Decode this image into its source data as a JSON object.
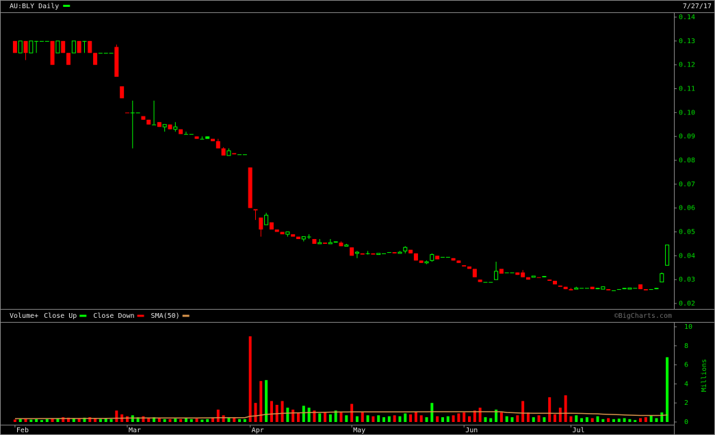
{
  "header": {
    "date": "7/27/17",
    "credit": "©BigCharts.com"
  },
  "chart_data": [
    {
      "type": "candlestick",
      "title": "AU:BLY Daily",
      "up_color": "#00ff00",
      "down_color": "#ff0000",
      "categories": [
        "Feb",
        null,
        null,
        null,
        null,
        null,
        null,
        null,
        null,
        null,
        null,
        null,
        null,
        null,
        null,
        null,
        null,
        null,
        null,
        null,
        null,
        "Mar",
        null,
        null,
        null,
        null,
        null,
        null,
        null,
        null,
        null,
        null,
        null,
        null,
        null,
        null,
        null,
        null,
        null,
        null,
        null,
        null,
        null,
        null,
        "Apr",
        null,
        null,
        null,
        null,
        null,
        null,
        null,
        null,
        null,
        null,
        null,
        null,
        null,
        null,
        null,
        null,
        null,
        null,
        "May",
        null,
        null,
        null,
        null,
        null,
        null,
        null,
        null,
        null,
        null,
        null,
        null,
        null,
        null,
        null,
        null,
        null,
        null,
        null,
        null,
        "Jun",
        null,
        null,
        null,
        null,
        null,
        null,
        null,
        null,
        null,
        null,
        null,
        null,
        null,
        null,
        null,
        null,
        null,
        null,
        null,
        "Jul",
        null,
        null,
        null,
        null,
        null,
        null,
        null,
        null,
        null,
        null,
        null,
        null,
        null,
        null,
        null,
        null,
        null,
        null
      ],
      "open": [
        0.13,
        0.125,
        0.13,
        0.125,
        0.13,
        0.13,
        0.13,
        0.13,
        0.125,
        0.13,
        0.125,
        0.125,
        0.13,
        0.13,
        0.13,
        0.125,
        0.125,
        0.125,
        0.125,
        0.1275,
        0.111,
        0.1,
        0.1,
        0.1,
        0.0985,
        0.097,
        0.095,
        0.096,
        0.094,
        0.095,
        0.093,
        0.093,
        0.091,
        0.091,
        0.09,
        0.089,
        0.09,
        0.089,
        0.088,
        0.085,
        0.082,
        0.083,
        0.0825,
        0.0825,
        0.077,
        0.0595,
        0.056,
        0.053,
        0.054,
        0.051,
        0.05,
        0.049,
        0.049,
        0.048,
        0.047,
        0.048,
        0.047,
        0.045,
        0.0455,
        0.045,
        0.046,
        0.0455,
        0.044,
        0.0435,
        0.041,
        0.041,
        0.041,
        0.041,
        0.0405,
        0.041,
        0.0415,
        0.0415,
        0.041,
        0.042,
        0.0425,
        0.041,
        0.038,
        0.037,
        0.038,
        0.04,
        0.0395,
        0.0395,
        0.039,
        0.038,
        0.036,
        0.0355,
        0.0345,
        0.03,
        0.029,
        0.029,
        0.03,
        0.0345,
        0.033,
        0.033,
        0.033,
        0.033,
        0.031,
        0.031,
        0.031,
        0.0315,
        0.03,
        0.0295,
        0.0275,
        0.027,
        0.026,
        0.026,
        0.0265,
        0.0265,
        0.027,
        0.0265,
        0.026,
        0.026,
        0.0255,
        0.026,
        0.0265,
        0.026,
        0.0265,
        0.028,
        0.026,
        0.026,
        0.0265,
        0.029,
        0.036
      ],
      "high": [
        0.13,
        0.13,
        0.13,
        0.13,
        0.13,
        0.13,
        0.13,
        0.13,
        0.13,
        0.13,
        0.125,
        0.13,
        0.13,
        0.13,
        0.13,
        0.125,
        0.125,
        0.125,
        0.125,
        0.1285,
        0.111,
        0.1,
        0.105,
        0.1,
        0.0985,
        0.097,
        0.105,
        0.096,
        0.095,
        0.095,
        0.096,
        0.093,
        0.092,
        0.091,
        0.09,
        0.09,
        0.09,
        0.089,
        0.089,
        0.0855,
        0.085,
        0.083,
        0.0825,
        0.0825,
        0.077,
        0.0595,
        0.056,
        0.058,
        0.054,
        0.051,
        0.05,
        0.05,
        0.049,
        0.048,
        0.048,
        0.049,
        0.047,
        0.047,
        0.0455,
        0.047,
        0.046,
        0.046,
        0.045,
        0.0435,
        0.042,
        0.041,
        0.042,
        0.041,
        0.041,
        0.041,
        0.0415,
        0.0415,
        0.042,
        0.044,
        0.0425,
        0.041,
        0.038,
        0.038,
        0.041,
        0.04,
        0.0395,
        0.0395,
        0.039,
        0.038,
        0.036,
        0.0355,
        0.0345,
        0.03,
        0.029,
        0.029,
        0.0375,
        0.0345,
        0.033,
        0.033,
        0.033,
        0.034,
        0.031,
        0.0315,
        0.031,
        0.0315,
        0.03,
        0.0295,
        0.0275,
        0.027,
        0.0265,
        0.027,
        0.0265,
        0.0265,
        0.027,
        0.0265,
        0.027,
        0.026,
        0.0255,
        0.026,
        0.0265,
        0.0265,
        0.0265,
        0.028,
        0.026,
        0.026,
        0.0265,
        0.033,
        0.0445
      ],
      "low": [
        0.125,
        0.125,
        0.122,
        0.125,
        0.125,
        0.13,
        0.13,
        0.12,
        0.125,
        0.125,
        0.12,
        0.125,
        0.125,
        0.125,
        0.125,
        0.12,
        0.125,
        0.125,
        0.125,
        0.115,
        0.106,
        0.1,
        0.085,
        0.1,
        0.097,
        0.095,
        0.095,
        0.094,
        0.092,
        0.093,
        0.092,
        0.091,
        0.091,
        0.091,
        0.089,
        0.089,
        0.089,
        0.088,
        0.085,
        0.082,
        0.082,
        0.0825,
        0.0825,
        0.0825,
        0.06,
        0.055,
        0.048,
        0.053,
        0.051,
        0.05,
        0.049,
        0.048,
        0.048,
        0.047,
        0.046,
        0.047,
        0.045,
        0.045,
        0.045,
        0.045,
        0.0455,
        0.044,
        0.044,
        0.04,
        0.039,
        0.0405,
        0.0405,
        0.0405,
        0.0405,
        0.041,
        0.0415,
        0.041,
        0.041,
        0.041,
        0.041,
        0.038,
        0.037,
        0.0365,
        0.0375,
        0.0385,
        0.0395,
        0.0395,
        0.038,
        0.037,
        0.0355,
        0.0345,
        0.031,
        0.029,
        0.029,
        0.029,
        0.03,
        0.0325,
        0.033,
        0.033,
        0.032,
        0.031,
        0.03,
        0.031,
        0.031,
        0.031,
        0.0295,
        0.028,
        0.027,
        0.026,
        0.0255,
        0.026,
        0.0265,
        0.0265,
        0.026,
        0.026,
        0.026,
        0.0255,
        0.0255,
        0.026,
        0.026,
        0.026,
        0.0265,
        0.026,
        0.0255,
        0.026,
        0.026,
        0.029,
        0.036
      ],
      "close": [
        0.125,
        0.13,
        0.125,
        0.13,
        0.13,
        0.13,
        0.13,
        0.12,
        0.13,
        0.125,
        0.12,
        0.13,
        0.125,
        0.13,
        0.125,
        0.12,
        0.125,
        0.125,
        0.125,
        0.115,
        0.106,
        0.1,
        0.1,
        0.1,
        0.097,
        0.095,
        0.095,
        0.094,
        0.095,
        0.093,
        0.094,
        0.091,
        0.091,
        0.091,
        0.089,
        0.089,
        0.089,
        0.088,
        0.085,
        0.082,
        0.084,
        0.0825,
        0.0825,
        0.0825,
        0.06,
        0.059,
        0.051,
        0.057,
        0.051,
        0.05,
        0.049,
        0.05,
        0.048,
        0.047,
        0.048,
        0.048,
        0.045,
        0.0455,
        0.045,
        0.0455,
        0.0455,
        0.044,
        0.0445,
        0.04,
        0.0415,
        0.0405,
        0.041,
        0.0405,
        0.041,
        0.041,
        0.0415,
        0.041,
        0.0415,
        0.0435,
        0.041,
        0.038,
        0.037,
        0.0375,
        0.0405,
        0.0385,
        0.0395,
        0.0395,
        0.038,
        0.037,
        0.0355,
        0.0345,
        0.031,
        0.029,
        0.029,
        0.029,
        0.0335,
        0.0325,
        0.033,
        0.033,
        0.032,
        0.031,
        0.03,
        0.0315,
        0.031,
        0.031,
        0.0295,
        0.028,
        0.027,
        0.026,
        0.0255,
        0.0265,
        0.0265,
        0.0265,
        0.026,
        0.026,
        0.027,
        0.0255,
        0.0255,
        0.026,
        0.026,
        0.0265,
        0.0265,
        0.026,
        0.0255,
        0.026,
        0.026,
        0.0325,
        0.0445
      ],
      "ylim": [
        0.02,
        0.14
      ],
      "yticks": [
        0.02,
        0.03,
        0.04,
        0.05,
        0.06,
        0.07,
        0.08,
        0.09,
        {
          "value": 0.1,
          "label": "0.10"
        },
        0.11,
        0.12,
        0.13,
        0.14
      ]
    },
    {
      "type": "volume",
      "title": "Volume+",
      "ylabel": "Millions",
      "legend": [
        {
          "name": "Close Up",
          "color": "#00ff00"
        },
        {
          "name": "Close Down",
          "color": "#ff0000"
        }
      ],
      "values": [
        0.25,
        0.3,
        0.35,
        0.25,
        0.3,
        0.2,
        0.3,
        0.35,
        0.4,
        0.5,
        0.45,
        0.4,
        0.35,
        0.45,
        0.5,
        0.4,
        0.3,
        0.35,
        0.3,
        1.2,
        0.8,
        0.6,
        0.7,
        0.5,
        0.6,
        0.4,
        0.5,
        0.4,
        0.3,
        0.3,
        0.35,
        0.3,
        0.4,
        0.3,
        0.35,
        0.25,
        0.3,
        0.4,
        1.3,
        0.7,
        0.5,
        0.4,
        0.3,
        0.3,
        9.0,
        2.0,
        4.3,
        4.4,
        2.2,
        1.8,
        2.2,
        1.5,
        1.3,
        1.0,
        1.7,
        1.5,
        1.2,
        0.9,
        1.0,
        0.8,
        1.2,
        1.0,
        0.7,
        1.9,
        0.6,
        1.0,
        0.7,
        0.6,
        0.7,
        0.5,
        0.6,
        0.7,
        0.6,
        0.9,
        0.8,
        1.1,
        0.7,
        0.5,
        2.0,
        0.6,
        0.5,
        0.6,
        0.7,
        0.9,
        1.0,
        0.6,
        1.2,
        1.5,
        0.5,
        0.4,
        1.3,
        1.0,
        0.6,
        0.5,
        0.7,
        2.2,
        1.0,
        0.5,
        0.7,
        0.5,
        2.6,
        0.8,
        1.5,
        2.8,
        0.6,
        0.7,
        0.4,
        0.5,
        0.4,
        0.6,
        0.3,
        0.4,
        0.3,
        0.35,
        0.4,
        0.3,
        0.2,
        0.4,
        0.5,
        0.7,
        0.4,
        1.0,
        6.8
      ],
      "sma": {
        "name": "SMA(50)",
        "color": "#d8944c",
        "values": [
          0.35,
          0.35,
          0.35,
          0.35,
          0.35,
          0.36,
          0.36,
          0.36,
          0.36,
          0.37,
          0.37,
          0.37,
          0.37,
          0.38,
          0.38,
          0.38,
          0.38,
          0.38,
          0.39,
          0.4,
          0.4,
          0.41,
          0.41,
          0.41,
          0.42,
          0.42,
          0.42,
          0.42,
          0.42,
          0.42,
          0.42,
          0.42,
          0.42,
          0.42,
          0.42,
          0.43,
          0.43,
          0.44,
          0.45,
          0.45,
          0.45,
          0.45,
          0.45,
          0.45,
          0.6,
          0.64,
          0.72,
          0.8,
          0.84,
          0.87,
          0.91,
          0.93,
          0.95,
          0.96,
          0.97,
          0.99,
          1.0,
          1.01,
          1.02,
          1.03,
          1.04,
          1.05,
          1.05,
          1.06,
          1.06,
          1.06,
          1.06,
          1.06,
          1.06,
          1.06,
          1.06,
          1.06,
          1.06,
          1.06,
          1.06,
          1.07,
          1.07,
          1.07,
          1.08,
          1.08,
          1.08,
          1.08,
          1.08,
          1.08,
          1.08,
          1.08,
          1.08,
          1.08,
          1.08,
          1.08,
          1.08,
          1.07,
          1.0,
          0.98,
          0.95,
          0.93,
          0.93,
          0.92,
          0.92,
          0.92,
          0.92,
          0.91,
          0.91,
          0.92,
          0.92,
          0.91,
          0.9,
          0.88,
          0.86,
          0.85,
          0.82,
          0.8,
          0.78,
          0.76,
          0.74,
          0.72,
          0.7,
          0.68,
          0.68,
          0.68,
          0.68,
          0.69,
          0.74
        ]
      },
      "ylim": [
        0,
        10
      ],
      "yticks": [
        0,
        2,
        4,
        6,
        8,
        10
      ]
    }
  ]
}
